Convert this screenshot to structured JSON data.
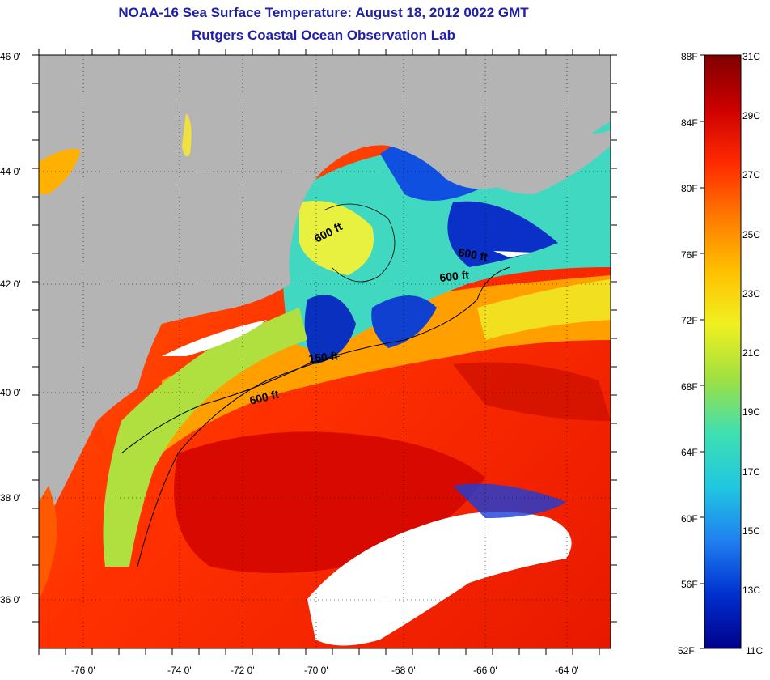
{
  "title": {
    "line1": "NOAA-16 Sea Surface Temperature:  August 18, 2012 0022 GMT",
    "line2": "Rutgers Coastal Ocean Observation Lab"
  },
  "map": {
    "lat_labels": [
      "46 0'",
      "44 0'",
      "42 0'",
      "40 0'",
      "38 0'",
      "36 0'"
    ],
    "lon_labels": [
      "-76 0'",
      "-74 0'",
      "-72 0'",
      "-70 0'",
      "-68 0'",
      "-66 0'",
      "-64 0'"
    ],
    "contour_labels": [
      "600 ft",
      "600 ft",
      "600 ft",
      "150 ft",
      "600 ft"
    ],
    "colors": {
      "land": "#b4b4b4",
      "cloud": "#ffffff",
      "frame": "#000000"
    }
  },
  "colorbar": {
    "fahrenheit_labels": [
      "88F",
      "84F",
      "80F",
      "76F",
      "72F",
      "68F",
      "64F",
      "60F",
      "56F",
      "52F"
    ],
    "celsius_labels": [
      "31C",
      "29C",
      "27C",
      "25C",
      "23C",
      "21C",
      "19C",
      "17C",
      "15C",
      "13C",
      "11C"
    ],
    "gradient_colors": [
      "#800000",
      "#cc0000",
      "#ff2a00",
      "#ff7a00",
      "#ffc000",
      "#f0f020",
      "#a0e040",
      "#40e0b0",
      "#20c8e0",
      "#2080f0",
      "#0030d0",
      "#00008a"
    ]
  }
}
